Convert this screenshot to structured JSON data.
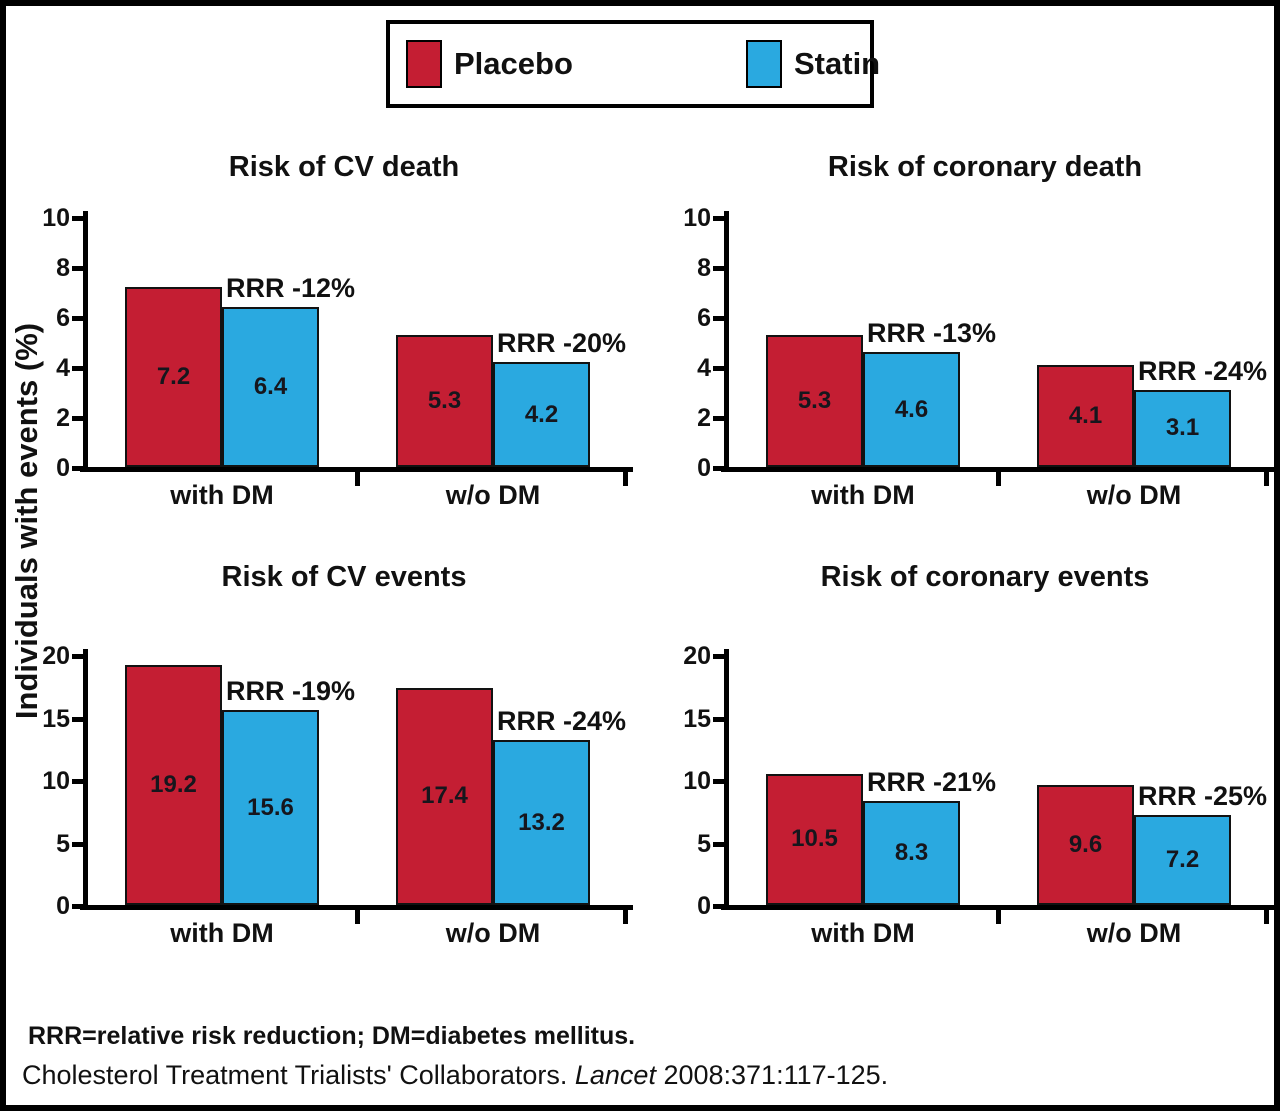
{
  "legend": {
    "items": [
      {
        "label": "Placebo",
        "color": "#c41e33"
      },
      {
        "label": "Statin",
        "color": "#2aa9e0"
      }
    ]
  },
  "y_axis_label": "Individuals with events (%)",
  "chart_data": [
    {
      "type": "bar",
      "title": "Risk of CV death",
      "ylim": [
        0,
        10
      ],
      "yticks": [
        0,
        2,
        4,
        6,
        8,
        10
      ],
      "categories": [
        "with DM",
        "w/o DM"
      ],
      "series": [
        {
          "name": "Placebo",
          "values": [
            7.2,
            5.3
          ]
        },
        {
          "name": "Statin",
          "values": [
            6.4,
            4.2
          ]
        }
      ],
      "annotations": [
        "RRR -12%",
        "RRR -20%"
      ],
      "legend_position": "top",
      "grid": false
    },
    {
      "type": "bar",
      "title": "Risk of coronary death",
      "ylim": [
        0,
        10
      ],
      "yticks": [
        0,
        2,
        4,
        6,
        8,
        10
      ],
      "categories": [
        "with DM",
        "w/o DM"
      ],
      "series": [
        {
          "name": "Placebo",
          "values": [
            5.3,
            4.1
          ]
        },
        {
          "name": "Statin",
          "values": [
            4.6,
            3.1
          ]
        }
      ],
      "annotations": [
        "RRR -13%",
        "RRR -24%"
      ],
      "legend_position": "top",
      "grid": false
    },
    {
      "type": "bar",
      "title": "Risk of CV events",
      "ylim": [
        0,
        20
      ],
      "yticks": [
        0,
        5,
        10,
        15,
        20
      ],
      "categories": [
        "with DM",
        "w/o DM"
      ],
      "series": [
        {
          "name": "Placebo",
          "values": [
            19.2,
            17.4
          ]
        },
        {
          "name": "Statin",
          "values": [
            15.6,
            13.2
          ]
        }
      ],
      "annotations": [
        "RRR -19%",
        "RRR -24%"
      ],
      "legend_position": "top",
      "grid": false
    },
    {
      "type": "bar",
      "title": "Risk of coronary events",
      "ylim": [
        0,
        20
      ],
      "yticks": [
        0,
        5,
        10,
        15,
        20
      ],
      "categories": [
        "with DM",
        "w/o DM"
      ],
      "series": [
        {
          "name": "Placebo",
          "values": [
            10.5,
            9.6
          ]
        },
        {
          "name": "Statin",
          "values": [
            8.3,
            7.2
          ]
        }
      ],
      "annotations": [
        "RRR -21%",
        "RRR -25%"
      ],
      "legend_position": "top",
      "grid": false
    }
  ],
  "footnotes": {
    "abbreviations": "RRR=relative risk reduction; DM=diabetes mellitus.",
    "citation": {
      "prefix": "Cholesterol Treatment Trialists' Collaborators. ",
      "journal": "Lancet",
      "suffix": " 2008:371:117-125."
    }
  }
}
